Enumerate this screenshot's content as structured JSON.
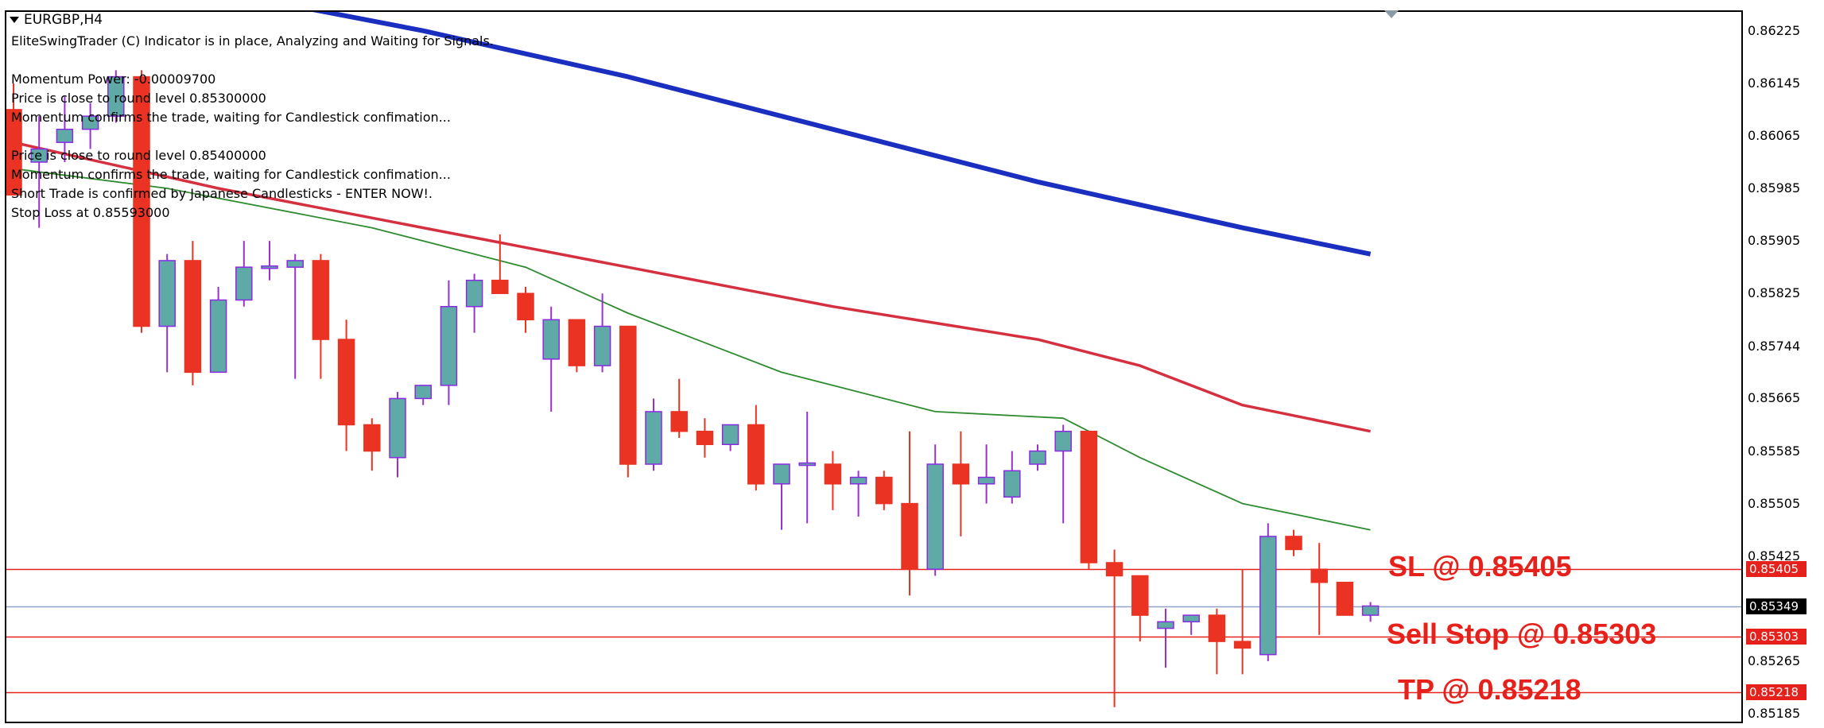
{
  "window": {
    "symbol": "EURGBP,H4"
  },
  "info": {
    "lines": [
      "EliteSwingTrader (C) Indicator is in place, Analyzing and Waiting for Signals.",
      "",
      "Momentum Power: -0.00009700",
      "Price is close to round level 0.85300000",
      "Momentum confirms the trade, waiting for Candlestick confimation...",
      "",
      "Price is close to round level 0.85400000",
      "Momentum confirms the trade, waiting for Candlestick confimation...",
      "Short Trade is confirmed by Japanese Candlesticks - ENTER NOW!.",
      "Stop Loss at 0.85593000"
    ]
  },
  "annotations": {
    "sl_label": "SL @ 0.85405",
    "sell_stop_label": "Sell Stop @ 0.85303",
    "tp_label": "TP @ 0.85218"
  },
  "price_tags": {
    "sl": "0.85405",
    "current": "0.85349",
    "sell_stop": "0.85303",
    "tp": "0.85218"
  },
  "colors": {
    "bull_body": "#5fa9a6",
    "bull_border": "#8a2be2",
    "bear_body": "#ea3323",
    "wick_bull": "#9932cc",
    "wick_bear": "#ea3323",
    "ma_slow": "#1a2ec0",
    "ma_mid": "#d43040",
    "ma_fast": "#2e8b2e",
    "level_line": "#e6201a",
    "current_line": "#8fa3c8",
    "current_tag_bg": "#000000"
  },
  "chart_data": {
    "type": "candlestick",
    "title": "EURGBP,H4",
    "ylim": [
      0.85185,
      0.86238
    ],
    "y_ticks": [
      "0.86225",
      "0.86145",
      "0.86065",
      "0.85985",
      "0.85905",
      "0.85825",
      "0.85744",
      "0.85665",
      "0.85585",
      "0.85505",
      "0.85425",
      "0.85345",
      "0.85265",
      "0.85185"
    ],
    "candles": [
      {
        "o": 0.86105,
        "h": 0.86145,
        "l": 0.85985,
        "c": 0.85975
      },
      {
        "o": 0.86025,
        "h": 0.86095,
        "l": 0.85925,
        "c": 0.86045
      },
      {
        "o": 0.86055,
        "h": 0.86125,
        "l": 0.86025,
        "c": 0.86075
      },
      {
        "o": 0.86075,
        "h": 0.86115,
        "l": 0.86045,
        "c": 0.86095
      },
      {
        "o": 0.86095,
        "h": 0.86165,
        "l": 0.86085,
        "c": 0.86155
      },
      {
        "o": 0.86155,
        "h": 0.86165,
        "l": 0.85765,
        "c": 0.85775
      },
      {
        "o": 0.85775,
        "h": 0.85885,
        "l": 0.85705,
        "c": 0.85875
      },
      {
        "o": 0.85875,
        "h": 0.85905,
        "l": 0.85685,
        "c": 0.85705
      },
      {
        "o": 0.85705,
        "h": 0.85835,
        "l": 0.85705,
        "c": 0.85815
      },
      {
        "o": 0.85815,
        "h": 0.85905,
        "l": 0.85805,
        "c": 0.85865
      },
      {
        "o": 0.85865,
        "h": 0.85905,
        "l": 0.85845,
        "c": 0.85865
      },
      {
        "o": 0.85865,
        "h": 0.85885,
        "l": 0.85695,
        "c": 0.85875
      },
      {
        "o": 0.85875,
        "h": 0.85885,
        "l": 0.85695,
        "c": 0.85755
      },
      {
        "o": 0.85755,
        "h": 0.85785,
        "l": 0.85585,
        "c": 0.85625
      },
      {
        "o": 0.85625,
        "h": 0.85635,
        "l": 0.85555,
        "c": 0.85585
      },
      {
        "o": 0.85575,
        "h": 0.85675,
        "l": 0.85545,
        "c": 0.85665
      },
      {
        "o": 0.85665,
        "h": 0.85685,
        "l": 0.85655,
        "c": 0.85685
      },
      {
        "o": 0.85685,
        "h": 0.85845,
        "l": 0.85655,
        "c": 0.85805
      },
      {
        "o": 0.85805,
        "h": 0.85855,
        "l": 0.85765,
        "c": 0.85845
      },
      {
        "o": 0.85845,
        "h": 0.85915,
        "l": 0.85825,
        "c": 0.85825
      },
      {
        "o": 0.85825,
        "h": 0.85835,
        "l": 0.85765,
        "c": 0.85785
      },
      {
        "o": 0.85725,
        "h": 0.85805,
        "l": 0.85645,
        "c": 0.85785
      },
      {
        "o": 0.85785,
        "h": 0.85785,
        "l": 0.85705,
        "c": 0.85715
      },
      {
        "o": 0.85715,
        "h": 0.85825,
        "l": 0.85705,
        "c": 0.85775
      },
      {
        "o": 0.85775,
        "h": 0.85775,
        "l": 0.85545,
        "c": 0.85565
      },
      {
        "o": 0.85565,
        "h": 0.85665,
        "l": 0.85555,
        "c": 0.85645
      },
      {
        "o": 0.85645,
        "h": 0.85695,
        "l": 0.85605,
        "c": 0.85615
      },
      {
        "o": 0.85615,
        "h": 0.85635,
        "l": 0.85575,
        "c": 0.85595
      },
      {
        "o": 0.85595,
        "h": 0.85625,
        "l": 0.85585,
        "c": 0.85625
      },
      {
        "o": 0.85625,
        "h": 0.85655,
        "l": 0.85525,
        "c": 0.85535
      },
      {
        "o": 0.85535,
        "h": 0.85565,
        "l": 0.85465,
        "c": 0.85565
      },
      {
        "o": 0.85565,
        "h": 0.85645,
        "l": 0.85475,
        "c": 0.85565
      },
      {
        "o": 0.85565,
        "h": 0.85585,
        "l": 0.85495,
        "c": 0.85535
      },
      {
        "o": 0.85535,
        "h": 0.85555,
        "l": 0.85485,
        "c": 0.85545
      },
      {
        "o": 0.85545,
        "h": 0.85555,
        "l": 0.85495,
        "c": 0.85505
      },
      {
        "o": 0.85505,
        "h": 0.85615,
        "l": 0.85365,
        "c": 0.85405
      },
      {
        "o": 0.85405,
        "h": 0.85595,
        "l": 0.85395,
        "c": 0.85565
      },
      {
        "o": 0.85565,
        "h": 0.85615,
        "l": 0.85455,
        "c": 0.85535
      },
      {
        "o": 0.85535,
        "h": 0.85595,
        "l": 0.85505,
        "c": 0.85545
      },
      {
        "o": 0.85515,
        "h": 0.85585,
        "l": 0.85505,
        "c": 0.85555
      },
      {
        "o": 0.85565,
        "h": 0.85595,
        "l": 0.85555,
        "c": 0.85585
      },
      {
        "o": 0.85585,
        "h": 0.85625,
        "l": 0.85475,
        "c": 0.85615
      },
      {
        "o": 0.85615,
        "h": 0.85615,
        "l": 0.85405,
        "c": 0.85415
      },
      {
        "o": 0.85415,
        "h": 0.85435,
        "l": 0.85195,
        "c": 0.85395
      },
      {
        "o": 0.85395,
        "h": 0.85395,
        "l": 0.85295,
        "c": 0.85335
      },
      {
        "o": 0.85315,
        "h": 0.85345,
        "l": 0.85255,
        "c": 0.85325
      },
      {
        "o": 0.85325,
        "h": 0.85335,
        "l": 0.85305,
        "c": 0.85335
      },
      {
        "o": 0.85335,
        "h": 0.85345,
        "l": 0.85245,
        "c": 0.85295
      },
      {
        "o": 0.85295,
        "h": 0.85405,
        "l": 0.85245,
        "c": 0.85285
      },
      {
        "o": 0.85275,
        "h": 0.85475,
        "l": 0.85265,
        "c": 0.85455
      },
      {
        "o": 0.85455,
        "h": 0.85465,
        "l": 0.85425,
        "c": 0.85435
      },
      {
        "o": 0.85405,
        "h": 0.85445,
        "l": 0.85305,
        "c": 0.85385
      },
      {
        "o": 0.85385,
        "h": 0.85385,
        "l": 0.85335,
        "c": 0.85335
      },
      {
        "o": 0.85335,
        "h": 0.85355,
        "l": 0.85325,
        "c": 0.85349
      }
    ],
    "moving_averages": [
      {
        "color": "#1a2ec0",
        "points": [
          [
            0,
            0.86345
          ],
          [
            16,
            0.86225
          ],
          [
            24,
            0.86155
          ],
          [
            32,
            0.86075
          ],
          [
            40,
            0.85995
          ],
          [
            48,
            0.85925
          ],
          [
            53,
            0.85885
          ]
        ]
      },
      {
        "color": "#d43040",
        "points": [
          [
            0,
            0.86055
          ],
          [
            8,
            0.85985
          ],
          [
            16,
            0.85925
          ],
          [
            24,
            0.85865
          ],
          [
            32,
            0.85805
          ],
          [
            40,
            0.85755
          ],
          [
            44,
            0.85715
          ],
          [
            48,
            0.85655
          ],
          [
            53,
            0.85615
          ]
        ]
      },
      {
        "color": "#2e8b2e",
        "points": [
          [
            0,
            0.86015
          ],
          [
            6,
            0.85985
          ],
          [
            14,
            0.85925
          ],
          [
            20,
            0.85865
          ],
          [
            24,
            0.85795
          ],
          [
            30,
            0.85705
          ],
          [
            36,
            0.85645
          ],
          [
            41,
            0.85635
          ],
          [
            44,
            0.85575
          ],
          [
            48,
            0.85505
          ],
          [
            53,
            0.85465
          ]
        ]
      }
    ],
    "levels": [
      {
        "value": 0.85405,
        "kind": "sl"
      },
      {
        "value": 0.85349,
        "kind": "current"
      },
      {
        "value": 0.85303,
        "kind": "sell_stop"
      },
      {
        "value": 0.85218,
        "kind": "tp"
      }
    ]
  }
}
